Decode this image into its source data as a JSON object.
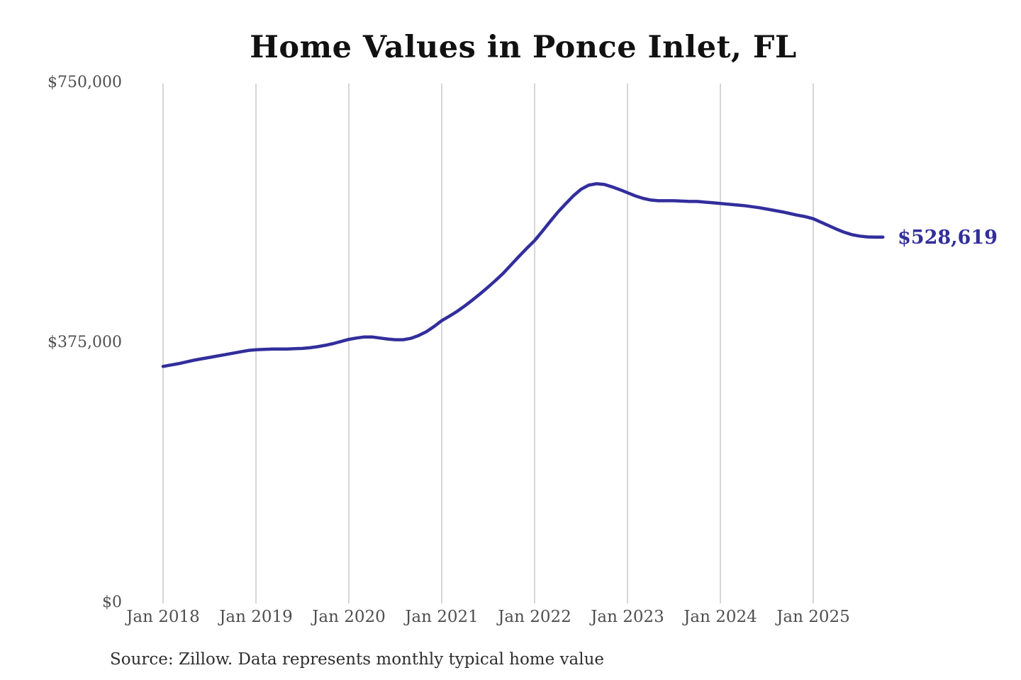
{
  "title": "Home Values in Ponce Inlet, FL",
  "end_label": "$528,619",
  "source_note": "Source: Zillow. Data represents monthly typical home value",
  "colors": {
    "background": "#ffffff",
    "line": "#322e9c",
    "grid": "#c9c9c9",
    "axis_text": "#4f4f4f",
    "title_text": "#111111",
    "source_text": "#2e2e2e",
    "end_label_text": "#322e9c"
  },
  "chart_data": {
    "type": "line",
    "title": "Home Values in Ponce Inlet, FL",
    "series_name": "Monthly typical home value (Zillow)",
    "frequency": "monthly",
    "x_start": "Jan 2018",
    "x_end": "Oct 2025",
    "xlabel": "",
    "ylabel": "",
    "ylim": [
      0,
      750000
    ],
    "grid": "vertical-only",
    "legend": "none",
    "x_tick_labels": [
      "Jan 2018",
      "Jan 2019",
      "Jan 2020",
      "Jan 2021",
      "Jan 2022",
      "Jan 2023",
      "Jan 2024",
      "Jan 2025"
    ],
    "y_ticks": [
      {
        "value": 0,
        "label": "$0"
      },
      {
        "value": 375000,
        "label": "$375,000"
      },
      {
        "value": 750000,
        "label": "$750,000"
      }
    ],
    "final_value": 528619,
    "final_value_label": "$528,619",
    "values": [
      342000,
      344000,
      346000,
      348500,
      351000,
      353000,
      355000,
      357000,
      359000,
      361000,
      363000,
      365000,
      366000,
      366500,
      367000,
      367000,
      367000,
      367500,
      368000,
      369000,
      370500,
      372500,
      375000,
      378000,
      381000,
      383000,
      384500,
      384500,
      383000,
      381500,
      380500,
      380500,
      382500,
      386500,
      392000,
      399500,
      408000,
      414500,
      421500,
      429500,
      438000,
      447000,
      456500,
      466500,
      477000,
      489000,
      501000,
      512500,
      523500,
      537000,
      551000,
      564500,
      576500,
      588000,
      597500,
      603500,
      605500,
      604500,
      601000,
      597000,
      592500,
      588000,
      584500,
      582000,
      581000,
      581000,
      581000,
      580500,
      580000,
      580000,
      579000,
      578000,
      577000,
      576000,
      575000,
      574000,
      572500,
      571000,
      569000,
      567000,
      565000,
      562500,
      560000,
      558000,
      555000,
      550000,
      545000,
      540000,
      535500,
      532000,
      530000,
      528800,
      528500,
      528619
    ]
  }
}
